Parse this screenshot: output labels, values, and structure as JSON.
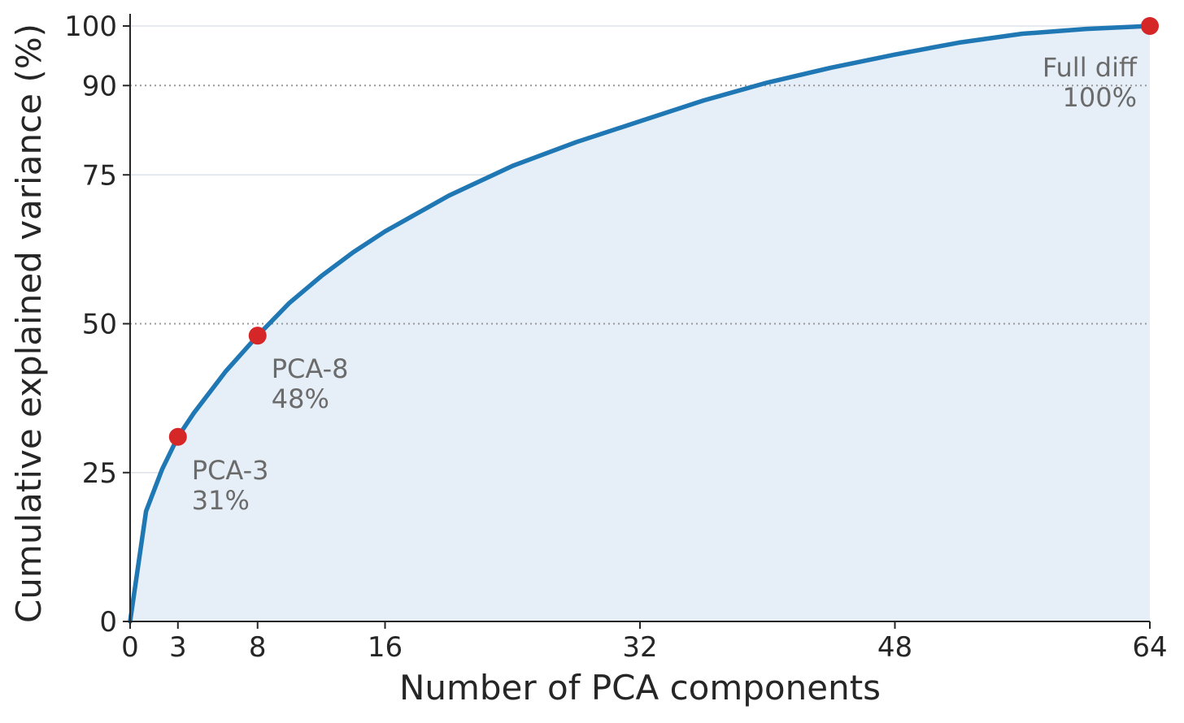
{
  "chart_data": {
    "type": "area",
    "xlabel": "Number of PCA components",
    "ylabel": "Cumulative explained variance (%)",
    "xlim": [
      0,
      64
    ],
    "ylim": [
      0,
      100
    ],
    "x_ticks": [
      0,
      3,
      8,
      16,
      32,
      48,
      64
    ],
    "y_ticks": [
      0,
      25,
      50,
      75,
      90,
      100
    ],
    "grid": "horizontal",
    "reference_lines": [
      50,
      90
    ],
    "colors": {
      "line": "#1f77b4",
      "fill": "#e6eff8",
      "marker": "#d62728",
      "annotation": "#6b6b6b",
      "grid": "#dde3ea",
      "reference": "#999999"
    },
    "series": [
      {
        "x": [
          0,
          1,
          2,
          3,
          4,
          5,
          6,
          7,
          8,
          10,
          12,
          14,
          16,
          20,
          24,
          28,
          32,
          36,
          40,
          44,
          48,
          52,
          56,
          60,
          64
        ],
        "y": [
          0,
          18.5,
          25.5,
          31,
          35,
          38.5,
          42,
          45,
          48,
          53.5,
          58,
          62,
          65.5,
          71.5,
          76.5,
          80.5,
          84,
          87.5,
          90.5,
          93,
          95.2,
          97.2,
          98.7,
          99.5,
          100
        ]
      }
    ],
    "highlights": [
      {
        "x": 3,
        "y": 31,
        "label": "PCA-3",
        "value_label": "31%"
      },
      {
        "x": 8,
        "y": 48,
        "label": "PCA-8",
        "value_label": "48%"
      },
      {
        "x": 64,
        "y": 100,
        "label": "Full diff",
        "value_label": "100%"
      }
    ]
  }
}
